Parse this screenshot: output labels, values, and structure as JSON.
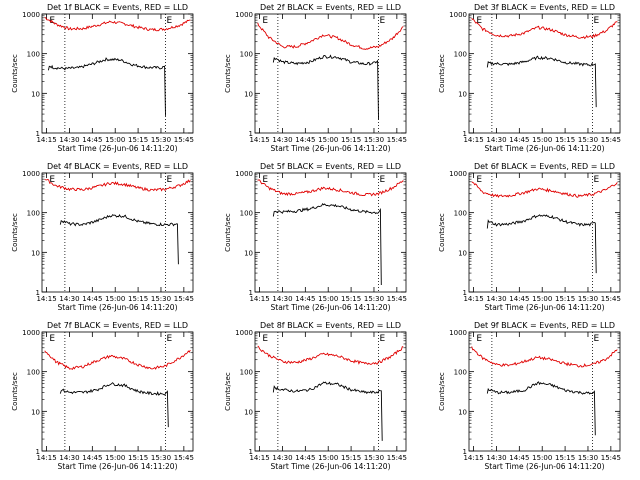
{
  "figure": {
    "background": "#ffffff",
    "axis_color": "#000000",
    "events_color": "#000000",
    "lld_color": "#e00000"
  },
  "chart_data": [
    {
      "type": "line",
      "title": "Det 1f BLACK = Events, RED = LLD",
      "xlabel": "Start Time (26-Jun-06 14:11:20)",
      "ylabel": "Counts/sec",
      "x_ticks": [
        "14:15",
        "14:30",
        "14:45",
        "15:00",
        "15:15",
        "15:30",
        "15:45"
      ],
      "y_ticks": [
        "1",
        "10",
        "100",
        "1000"
      ],
      "xlim": [
        14.2,
        15.85
      ],
      "ylim": [
        1,
        1000
      ],
      "y_scale": "log",
      "vlines": [
        14.45,
        15.55
      ],
      "markers": [
        {
          "label": "E",
          "x": 14.27
        },
        {
          "label": "E",
          "x": 15.55
        }
      ],
      "series": [
        {
          "color": "#e00000",
          "x": [
            14.23,
            14.35,
            14.5,
            14.65,
            14.8,
            14.95,
            15.1,
            15.25,
            15.4,
            15.55,
            15.7,
            15.82
          ],
          "values": [
            820,
            560,
            420,
            430,
            520,
            640,
            570,
            460,
            400,
            420,
            520,
            700
          ]
        },
        {
          "color": "#000000",
          "x": [
            14.27,
            14.28,
            14.32,
            14.45,
            14.6,
            14.75,
            14.9,
            15.05,
            15.2,
            15.35,
            15.5,
            15.54,
            15.55
          ],
          "values": [
            38,
            50,
            45,
            42,
            44,
            55,
            72,
            70,
            52,
            45,
            44,
            48,
            2.7
          ]
        }
      ]
    },
    {
      "type": "line",
      "title": "Det 2f BLACK = Events, RED = LLD",
      "xlabel": "Start Time (26-Jun-06 14:11:20)",
      "ylabel": "Counts/sec",
      "x_ticks": [
        "14:15",
        "14:30",
        "14:45",
        "15:00",
        "15:15",
        "15:30",
        "15:45"
      ],
      "y_ticks": [
        "1",
        "10",
        "100",
        "1000"
      ],
      "xlim": [
        14.2,
        15.85
      ],
      "ylim": [
        1,
        1000
      ],
      "y_scale": "log",
      "vlines": [
        14.45,
        15.55
      ],
      "markers": [
        {
          "label": "E",
          "x": 14.27
        },
        {
          "label": "E",
          "x": 15.55
        }
      ],
      "series": [
        {
          "color": "#e00000",
          "x": [
            14.23,
            14.35,
            14.5,
            14.65,
            14.8,
            14.95,
            15.1,
            15.25,
            15.4,
            15.55,
            15.7,
            15.82
          ],
          "values": [
            560,
            260,
            150,
            150,
            200,
            300,
            250,
            170,
            135,
            150,
            240,
            480
          ]
        },
        {
          "color": "#000000",
          "x": [
            14.4,
            14.41,
            14.5,
            14.65,
            14.8,
            14.95,
            15.1,
            15.25,
            15.4,
            15.5,
            15.54,
            15.55
          ],
          "values": [
            60,
            80,
            62,
            56,
            62,
            85,
            82,
            62,
            55,
            58,
            66,
            2.2
          ]
        }
      ]
    },
    {
      "type": "line",
      "title": "Det 3f BLACK = Events, RED = LLD",
      "xlabel": "Start Time (26-Jun-06 14:11:20)",
      "ylabel": "Counts/sec",
      "x_ticks": [
        "14:15",
        "14:30",
        "14:45",
        "15:00",
        "15:15",
        "15:30",
        "15:45"
      ],
      "y_ticks": [
        "1",
        "10",
        "100",
        "1000"
      ],
      "xlim": [
        14.2,
        15.85
      ],
      "ylim": [
        1,
        1000
      ],
      "y_scale": "log",
      "vlines": [
        14.45,
        15.55
      ],
      "markers": [
        {
          "label": "E",
          "x": 14.27
        },
        {
          "label": "E",
          "x": 15.55
        }
      ],
      "series": [
        {
          "color": "#e00000",
          "x": [
            14.23,
            14.35,
            14.5,
            14.65,
            14.8,
            14.95,
            15.1,
            15.25,
            15.4,
            15.55,
            15.7,
            15.82
          ],
          "values": [
            760,
            420,
            290,
            280,
            330,
            460,
            400,
            300,
            260,
            270,
            380,
            650
          ]
        },
        {
          "color": "#000000",
          "x": [
            14.4,
            14.41,
            14.5,
            14.65,
            14.8,
            14.95,
            15.1,
            15.25,
            15.4,
            15.52,
            15.58,
            15.59
          ],
          "values": [
            45,
            58,
            56,
            54,
            62,
            80,
            76,
            60,
            55,
            52,
            55,
            4.5
          ]
        }
      ]
    },
    {
      "type": "line",
      "title": "Det 4f BLACK = Events, RED = LLD",
      "xlabel": "Start Time (26-Jun-06 14:11:20)",
      "ylabel": "Counts/sec",
      "x_ticks": [
        "14:15",
        "14:30",
        "14:45",
        "15:00",
        "15:15",
        "15:30",
        "15:45"
      ],
      "y_ticks": [
        "1",
        "10",
        "100",
        "1000"
      ],
      "xlim": [
        14.2,
        15.85
      ],
      "ylim": [
        1,
        1000
      ],
      "y_scale": "log",
      "vlines": [
        14.45,
        15.55
      ],
      "markers": [
        {
          "label": "E",
          "x": 14.27
        },
        {
          "label": "E",
          "x": 15.55
        }
      ],
      "series": [
        {
          "color": "#e00000",
          "x": [
            14.23,
            14.35,
            14.5,
            14.65,
            14.8,
            14.95,
            15.1,
            15.25,
            15.4,
            15.55,
            15.7,
            15.82
          ],
          "values": [
            720,
            480,
            390,
            380,
            450,
            560,
            520,
            420,
            370,
            390,
            480,
            650
          ]
        },
        {
          "color": "#000000",
          "x": [
            14.4,
            14.41,
            14.5,
            14.65,
            14.8,
            14.95,
            15.1,
            15.25,
            15.4,
            15.55,
            15.68,
            15.69
          ],
          "values": [
            50,
            65,
            52,
            50,
            62,
            85,
            82,
            60,
            52,
            50,
            52,
            5
          ]
        }
      ]
    },
    {
      "type": "line",
      "title": "Det 5f BLACK = Events, RED = LLD",
      "xlabel": "Start Time (26-Jun-06 14:11:20)",
      "ylabel": "Counts/sec",
      "x_ticks": [
        "14:15",
        "14:30",
        "14:45",
        "15:00",
        "15:15",
        "15:30",
        "15:45"
      ],
      "y_ticks": [
        "1",
        "10",
        "100",
        "1000"
      ],
      "xlim": [
        14.2,
        15.85
      ],
      "ylim": [
        1,
        1000
      ],
      "y_scale": "log",
      "vlines": [
        14.45,
        15.55
      ],
      "markers": [
        {
          "label": "E",
          "x": 14.27
        },
        {
          "label": "E",
          "x": 15.55
        }
      ],
      "series": [
        {
          "color": "#e00000",
          "x": [
            14.23,
            14.35,
            14.5,
            14.65,
            14.8,
            14.95,
            15.1,
            15.25,
            15.4,
            15.55,
            15.7,
            15.82
          ],
          "values": [
            680,
            420,
            300,
            300,
            340,
            420,
            380,
            320,
            280,
            300,
            420,
            650
          ]
        },
        {
          "color": "#000000",
          "x": [
            14.4,
            14.41,
            14.5,
            14.65,
            14.8,
            14.95,
            15.1,
            15.25,
            15.4,
            15.55,
            15.57,
            15.58
          ],
          "values": [
            80,
            110,
            105,
            110,
            125,
            160,
            150,
            120,
            105,
            100,
            120,
            1.5
          ]
        }
      ]
    },
    {
      "type": "line",
      "title": "Det 6f BLACK = Events, RED = LLD",
      "xlabel": "Start Time (26-Jun-06 14:11:20)",
      "ylabel": "Counts/sec",
      "x_ticks": [
        "14:15",
        "14:30",
        "14:45",
        "15:00",
        "15:15",
        "15:30",
        "15:45"
      ],
      "y_ticks": [
        "1",
        "10",
        "100",
        "1000"
      ],
      "xlim": [
        14.2,
        15.85
      ],
      "ylim": [
        1,
        1000
      ],
      "y_scale": "log",
      "vlines": [
        14.45,
        15.55
      ],
      "markers": [
        {
          "label": "E",
          "x": 14.27
        },
        {
          "label": "E",
          "x": 15.55
        }
      ],
      "series": [
        {
          "color": "#e00000",
          "x": [
            14.23,
            14.35,
            14.5,
            14.65,
            14.8,
            14.95,
            15.1,
            15.25,
            15.4,
            15.55,
            15.7,
            15.82
          ],
          "values": [
            620,
            330,
            260,
            270,
            320,
            400,
            360,
            300,
            260,
            290,
            380,
            580
          ]
        },
        {
          "color": "#000000",
          "x": [
            14.4,
            14.41,
            14.5,
            14.65,
            14.8,
            14.95,
            15.1,
            15.25,
            15.4,
            15.52,
            15.58,
            15.59
          ],
          "values": [
            40,
            60,
            50,
            52,
            62,
            85,
            80,
            60,
            50,
            50,
            55,
            3
          ]
        }
      ]
    },
    {
      "type": "line",
      "title": "Det 7f BLACK = Events, RED = LLD",
      "xlabel": "Start Time (26-Jun-06 14:11:20)",
      "ylabel": "Counts/sec",
      "x_ticks": [
        "14:15",
        "14:30",
        "14:45",
        "15:00",
        "15:15",
        "15:30",
        "15:45"
      ],
      "y_ticks": [
        "1",
        "10",
        "100",
        "1000"
      ],
      "xlim": [
        14.2,
        15.85
      ],
      "ylim": [
        1,
        1000
      ],
      "y_scale": "log",
      "vlines": [
        14.45,
        15.55
      ],
      "markers": [
        {
          "label": "E",
          "x": 14.27
        },
        {
          "label": "E",
          "x": 15.55
        }
      ],
      "series": [
        {
          "color": "#e00000",
          "x": [
            14.23,
            14.35,
            14.5,
            14.65,
            14.8,
            14.95,
            15.1,
            15.25,
            15.4,
            15.55,
            15.7,
            15.82
          ],
          "values": [
            350,
            180,
            120,
            135,
            190,
            250,
            210,
            150,
            120,
            140,
            220,
            350
          ]
        },
        {
          "color": "#000000",
          "x": [
            14.4,
            14.41,
            14.5,
            14.65,
            14.8,
            14.95,
            15.1,
            15.25,
            15.4,
            15.55,
            15.57,
            15.58
          ],
          "values": [
            28,
            35,
            30,
            30,
            35,
            50,
            45,
            32,
            28,
            28,
            32,
            4
          ]
        }
      ]
    },
    {
      "type": "line",
      "title": "Det 8f BLACK = Events, RED = LLD",
      "xlabel": "Start Time (26-Jun-06 14:11:20)",
      "ylabel": "Counts/sec",
      "x_ticks": [
        "14:15",
        "14:30",
        "14:45",
        "15:00",
        "15:15",
        "15:30",
        "15:45"
      ],
      "y_ticks": [
        "1",
        "10",
        "100",
        "1000"
      ],
      "xlim": [
        14.2,
        15.85
      ],
      "ylim": [
        1,
        1000
      ],
      "y_scale": "log",
      "vlines": [
        14.45,
        15.55
      ],
      "markers": [
        {
          "label": "E",
          "x": 14.27
        },
        {
          "label": "E",
          "x": 15.55
        }
      ],
      "series": [
        {
          "color": "#e00000",
          "x": [
            14.23,
            14.35,
            14.5,
            14.65,
            14.8,
            14.95,
            15.1,
            15.25,
            15.4,
            15.55,
            15.7,
            15.82
          ],
          "values": [
            420,
            260,
            180,
            170,
            210,
            280,
            250,
            190,
            160,
            170,
            250,
            420
          ]
        },
        {
          "color": "#000000",
          "x": [
            14.4,
            14.41,
            14.5,
            14.65,
            14.8,
            14.95,
            15.1,
            15.25,
            15.4,
            15.52,
            15.58,
            15.59
          ],
          "values": [
            30,
            40,
            35,
            32,
            35,
            52,
            48,
            35,
            30,
            30,
            33,
            1.8
          ]
        }
      ]
    },
    {
      "type": "line",
      "title": "Det 9f BLACK = Events, RED = LLD",
      "xlabel": "Start Time (26-Jun-06 14:11:20)",
      "ylabel": "Counts/sec",
      "x_ticks": [
        "14:15",
        "14:30",
        "14:45",
        "15:00",
        "15:15",
        "15:30",
        "15:45"
      ],
      "y_ticks": [
        "1",
        "10",
        "100",
        "1000"
      ],
      "xlim": [
        14.2,
        15.85
      ],
      "ylim": [
        1,
        1000
      ],
      "y_scale": "log",
      "vlines": [
        14.45,
        15.55
      ],
      "markers": [
        {
          "label": "E",
          "x": 14.27
        },
        {
          "label": "E",
          "x": 15.55
        }
      ],
      "series": [
        {
          "color": "#e00000",
          "x": [
            14.23,
            14.35,
            14.5,
            14.65,
            14.8,
            14.95,
            15.1,
            15.25,
            15.4,
            15.55,
            15.7,
            15.82
          ],
          "values": [
            400,
            220,
            150,
            145,
            180,
            230,
            200,
            160,
            140,
            150,
            210,
            360
          ]
        },
        {
          "color": "#000000",
          "x": [
            14.4,
            14.41,
            14.5,
            14.65,
            14.8,
            14.95,
            15.1,
            15.25,
            15.4,
            15.55,
            15.57,
            15.58
          ],
          "values": [
            28,
            36,
            30,
            30,
            34,
            52,
            46,
            34,
            30,
            28,
            32,
            2.5
          ]
        }
      ]
    }
  ]
}
